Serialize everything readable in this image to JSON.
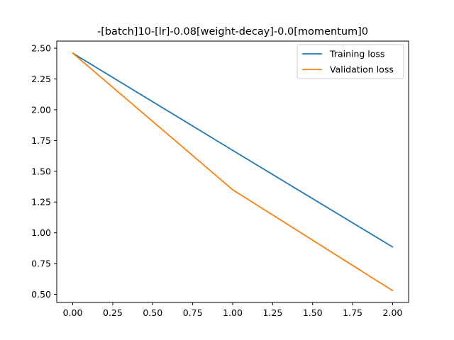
{
  "chart_data": {
    "type": "line",
    "title": "-[batch]10-[lr]-0.08[weight-decay]-0.0[momentum]0",
    "xlabel": "",
    "ylabel": "",
    "x": [
      0,
      1,
      2
    ],
    "xlim": [
      -0.1,
      2.1
    ],
    "ylim": [
      0.434,
      2.558
    ],
    "xticks": [
      0.0,
      0.25,
      0.5,
      0.75,
      1.0,
      1.25,
      1.5,
      1.75,
      2.0
    ],
    "xtick_labels": [
      "0.00",
      "0.25",
      "0.50",
      "0.75",
      "1.00",
      "1.25",
      "1.50",
      "1.75",
      "2.00"
    ],
    "yticks": [
      0.5,
      0.75,
      1.0,
      1.25,
      1.5,
      1.75,
      2.0,
      2.25,
      2.5
    ],
    "ytick_labels": [
      "0.50",
      "0.75",
      "1.00",
      "1.25",
      "1.50",
      "1.75",
      "2.00",
      "2.25",
      "2.50"
    ],
    "grid": false,
    "legend_position": "top-right",
    "series": [
      {
        "name": "Training loss",
        "values": [
          2.46,
          1.67,
          0.885
        ],
        "color": "#1f77b4"
      },
      {
        "name": "Validation loss",
        "values": [
          2.46,
          1.35,
          0.53
        ],
        "color": "#ff7f0e"
      }
    ]
  }
}
